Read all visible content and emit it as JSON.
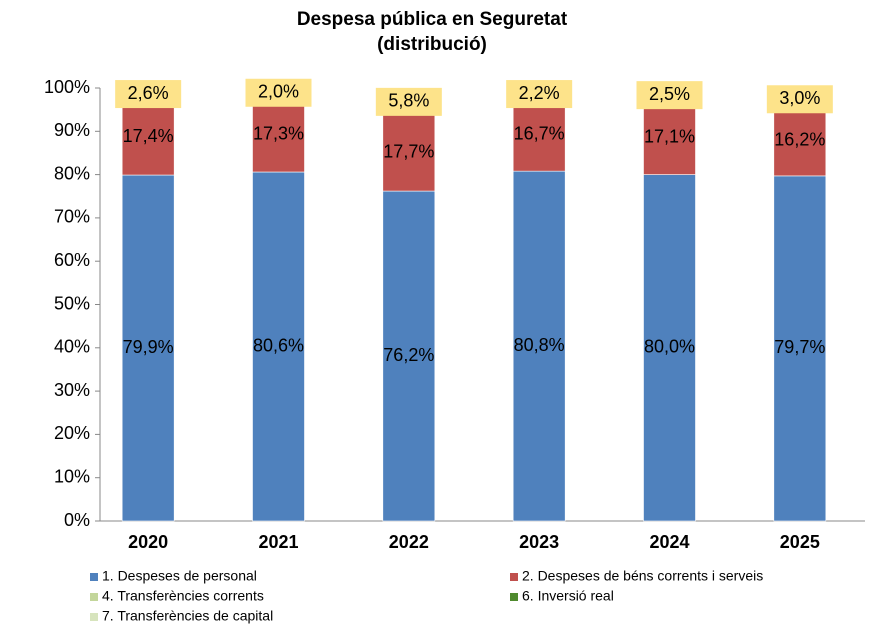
{
  "chart_data": {
    "type": "stacked_bar",
    "title": "Despesa pública en Seguretat",
    "subtitle": "(distribució)",
    "categories": [
      "2020",
      "2021",
      "2022",
      "2023",
      "2024",
      "2025"
    ],
    "series": [
      {
        "name": "1. Despeses de personal",
        "color": "#4f81bd",
        "values": [
          79.9,
          80.6,
          76.2,
          80.8,
          80.0,
          79.7
        ],
        "value_labels": [
          "79,9%",
          "80,6%",
          "76,2%",
          "80,8%",
          "80,0%",
          "79,7%"
        ]
      },
      {
        "name": "2. Despeses de béns corrents i serveis",
        "color": "#c0504d",
        "values": [
          17.4,
          17.3,
          17.7,
          16.7,
          17.1,
          16.2
        ],
        "value_labels": [
          "17,4%",
          "17,3%",
          "17,7%",
          "16,7%",
          "17,1%",
          "16,2%"
        ]
      },
      {
        "name": "4. Transferències corrents",
        "color": "#c3d69b",
        "values": [
          null,
          null,
          null,
          null,
          null,
          null
        ]
      },
      {
        "name": "6. Inversió real",
        "color": "#4f8a2e",
        "values": [
          2.6,
          2.0,
          5.8,
          2.2,
          2.5,
          3.0
        ],
        "value_labels": [
          "2,6%",
          "2,0%",
          "5,8%",
          "2,2%",
          "2,5%",
          "3,0%"
        ]
      },
      {
        "name": "7. Transferències de capital",
        "color": "#d7e4bd",
        "values": [
          null,
          null,
          null,
          null,
          null,
          null
        ]
      }
    ],
    "ylim": [
      0,
      100
    ],
    "yticks": [
      {
        "value": 0,
        "label": "0%"
      },
      {
        "value": 10,
        "label": "10%"
      },
      {
        "value": 20,
        "label": "20%"
      },
      {
        "value": 30,
        "label": "30%"
      },
      {
        "value": 40,
        "label": "40%"
      },
      {
        "value": 50,
        "label": "50%"
      },
      {
        "value": 60,
        "label": "60%"
      },
      {
        "value": 70,
        "label": "70%"
      },
      {
        "value": 80,
        "label": "80%"
      },
      {
        "value": 90,
        "label": "90%"
      },
      {
        "value": 100,
        "label": "100%"
      }
    ],
    "grid": false
  }
}
